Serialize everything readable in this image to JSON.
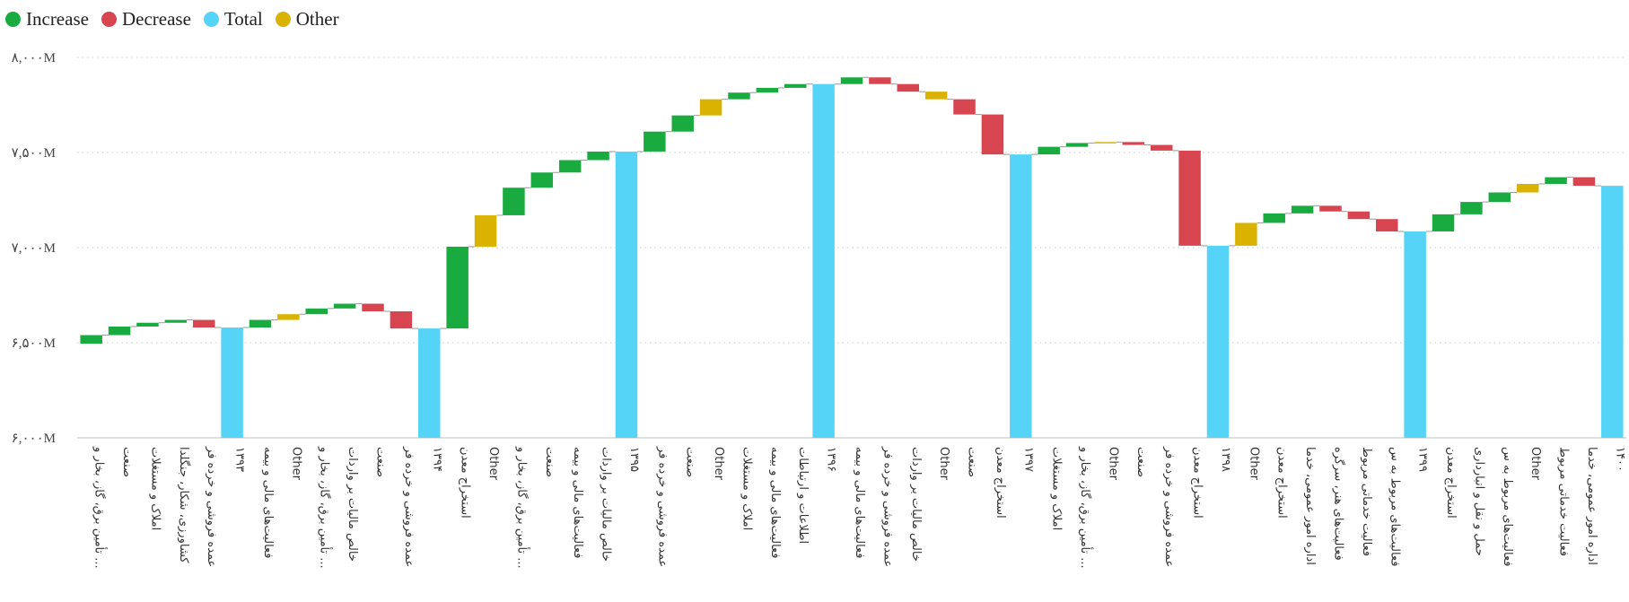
{
  "colors": {
    "increase": "#1aab40",
    "decrease": "#d64550",
    "total": "#55d4f7",
    "other": "#d9b300",
    "grid": "#c8c8c8",
    "connector": "#9a9a9a"
  },
  "legend": [
    {
      "label": "Increase",
      "color": "#1aab40"
    },
    {
      "label": "Decrease",
      "color": "#d64550"
    },
    {
      "label": "Total",
      "color": "#55d4f7"
    },
    {
      "label": "Other",
      "color": "#d9b300"
    }
  ],
  "chart_data": {
    "type": "waterfall",
    "title": "",
    "xlabel": "",
    "ylabel": "",
    "ylim": [
      6000,
      8000
    ],
    "yticks": [
      6000,
      6500,
      7000,
      7500,
      8000
    ],
    "ytick_labels": [
      "۶,۰۰۰M",
      "۶,۵۰۰M",
      "۷,۰۰۰M",
      "۷,۵۰۰M",
      "۸,۰۰۰M"
    ],
    "grid": true,
    "legend_position": "top-left",
    "bars": [
      {
        "label": "تأمین برق، گاز، بخار و ...",
        "kind": "increase",
        "start": 6495,
        "end": 6540
      },
      {
        "label": "صنعت",
        "kind": "increase",
        "start": 6540,
        "end": 6585
      },
      {
        "label": "املاک و مستغلات",
        "kind": "increase",
        "start": 6585,
        "end": 6605
      },
      {
        "label": "کشاورزی، شکار، جنگلدا",
        "kind": "increase",
        "start": 6605,
        "end": 6620
      },
      {
        "label": "عمده فروشی و خرده فر",
        "kind": "decrease",
        "start": 6620,
        "end": 6580
      },
      {
        "label": "۱۳۹۳",
        "kind": "total",
        "start": 6000,
        "end": 6580
      },
      {
        "label": "فعالیت‌های مالی و بیمه",
        "kind": "increase",
        "start": 6580,
        "end": 6620
      },
      {
        "label": "Other",
        "kind": "other",
        "start": 6620,
        "end": 6650
      },
      {
        "label": "تأمین برق، گاز، بخار و ...",
        "kind": "increase",
        "start": 6650,
        "end": 6680
      },
      {
        "label": "خالص مالیات بر واردات",
        "kind": "increase",
        "start": 6680,
        "end": 6705
      },
      {
        "label": "صنعت",
        "kind": "decrease",
        "start": 6705,
        "end": 6665
      },
      {
        "label": "عمده فروشی و خرده فر",
        "kind": "decrease",
        "start": 6665,
        "end": 6575
      },
      {
        "label": "۱۳۹۴",
        "kind": "total",
        "start": 6000,
        "end": 6575
      },
      {
        "label": "استخراج معدن",
        "kind": "increase",
        "start": 6575,
        "end": 7005
      },
      {
        "label": "Other",
        "kind": "other",
        "start": 7005,
        "end": 7170
      },
      {
        "label": "تأمین برق، گاز، بخار و ...",
        "kind": "increase",
        "start": 7170,
        "end": 7315
      },
      {
        "label": "صنعت",
        "kind": "increase",
        "start": 7315,
        "end": 7395
      },
      {
        "label": "فعالیت‌های مالی و بیمه",
        "kind": "increase",
        "start": 7395,
        "end": 7460
      },
      {
        "label": "خالص مالیات بر واردات",
        "kind": "increase",
        "start": 7460,
        "end": 7505
      },
      {
        "label": "۱۳۹۵",
        "kind": "total",
        "start": 6000,
        "end": 7505
      },
      {
        "label": "عمده فروشی و خرده فر",
        "kind": "increase",
        "start": 7505,
        "end": 7610
      },
      {
        "label": "صنعت",
        "kind": "increase",
        "start": 7610,
        "end": 7695
      },
      {
        "label": "Other",
        "kind": "other",
        "start": 7695,
        "end": 7780
      },
      {
        "label": "املاک و مستغلات",
        "kind": "increase",
        "start": 7780,
        "end": 7815
      },
      {
        "label": "فعالیت‌های مالی و بیمه",
        "kind": "increase",
        "start": 7815,
        "end": 7840
      },
      {
        "label": "اطلاعات و ارتباطات",
        "kind": "increase",
        "start": 7840,
        "end": 7860
      },
      {
        "label": "۱۳۹۶",
        "kind": "total",
        "start": 6000,
        "end": 7860
      },
      {
        "label": "فعالیت‌های مالی و بیمه",
        "kind": "increase",
        "start": 7860,
        "end": 7895
      },
      {
        "label": "عمده فروشی و خرده فر",
        "kind": "decrease",
        "start": 7895,
        "end": 7860
      },
      {
        "label": "خالص مالیات بر واردات",
        "kind": "decrease",
        "start": 7860,
        "end": 7820
      },
      {
        "label": "Other",
        "kind": "other",
        "start": 7820,
        "end": 7780
      },
      {
        "label": "صنعت",
        "kind": "decrease",
        "start": 7780,
        "end": 7700
      },
      {
        "label": "استخراج معدن",
        "kind": "decrease",
        "start": 7700,
        "end": 7490
      },
      {
        "label": "۱۳۹۷",
        "kind": "total",
        "start": 6000,
        "end": 7490
      },
      {
        "label": "املاک و مستغلات",
        "kind": "increase",
        "start": 7490,
        "end": 7530
      },
      {
        "label": "تأمین برق، گاز، بخار و ...",
        "kind": "increase",
        "start": 7530,
        "end": 7550
      },
      {
        "label": "Other",
        "kind": "other",
        "start": 7550,
        "end": 7555
      },
      {
        "label": "صنعت",
        "kind": "decrease",
        "start": 7555,
        "end": 7540
      },
      {
        "label": "عمده فروشی و خرده فر",
        "kind": "decrease",
        "start": 7540,
        "end": 7510
      },
      {
        "label": "استخراج معدن",
        "kind": "decrease",
        "start": 7510,
        "end": 7010
      },
      {
        "label": "۱۳۹۸",
        "kind": "total",
        "start": 6000,
        "end": 7010
      },
      {
        "label": "Other",
        "kind": "other",
        "start": 7010,
        "end": 7130
      },
      {
        "label": "استخراج معدن",
        "kind": "increase",
        "start": 7130,
        "end": 7180
      },
      {
        "label": "اداره امور عمومی، خدما",
        "kind": "increase",
        "start": 7180,
        "end": 7220
      },
      {
        "label": "فعالیت‌های هنر، سرگره",
        "kind": "decrease",
        "start": 7220,
        "end": 7190
      },
      {
        "label": "فعالیت خدماتی مربوط",
        "kind": "decrease",
        "start": 7190,
        "end": 7150
      },
      {
        "label": "فعالیت‌های مربوط به س",
        "kind": "decrease",
        "start": 7150,
        "end": 7085
      },
      {
        "label": "۱۳۹۹",
        "kind": "total",
        "start": 6000,
        "end": 7085
      },
      {
        "label": "استخراج معدن",
        "kind": "increase",
        "start": 7085,
        "end": 7175
      },
      {
        "label": "حمل و نقل و انبارداری",
        "kind": "increase",
        "start": 7175,
        "end": 7240
      },
      {
        "label": "فعالیت‌های مربوط به س",
        "kind": "increase",
        "start": 7240,
        "end": 7290
      },
      {
        "label": "Other",
        "kind": "other",
        "start": 7290,
        "end": 7335
      },
      {
        "label": "فعالیت خدماتی مربوط",
        "kind": "increase",
        "start": 7335,
        "end": 7370
      },
      {
        "label": "اداره امور عمومی، خدما",
        "kind": "decrease",
        "start": 7370,
        "end": 7325
      },
      {
        "label": "۱۴۰۰",
        "kind": "total",
        "start": 6000,
        "end": 7325
      }
    ]
  }
}
